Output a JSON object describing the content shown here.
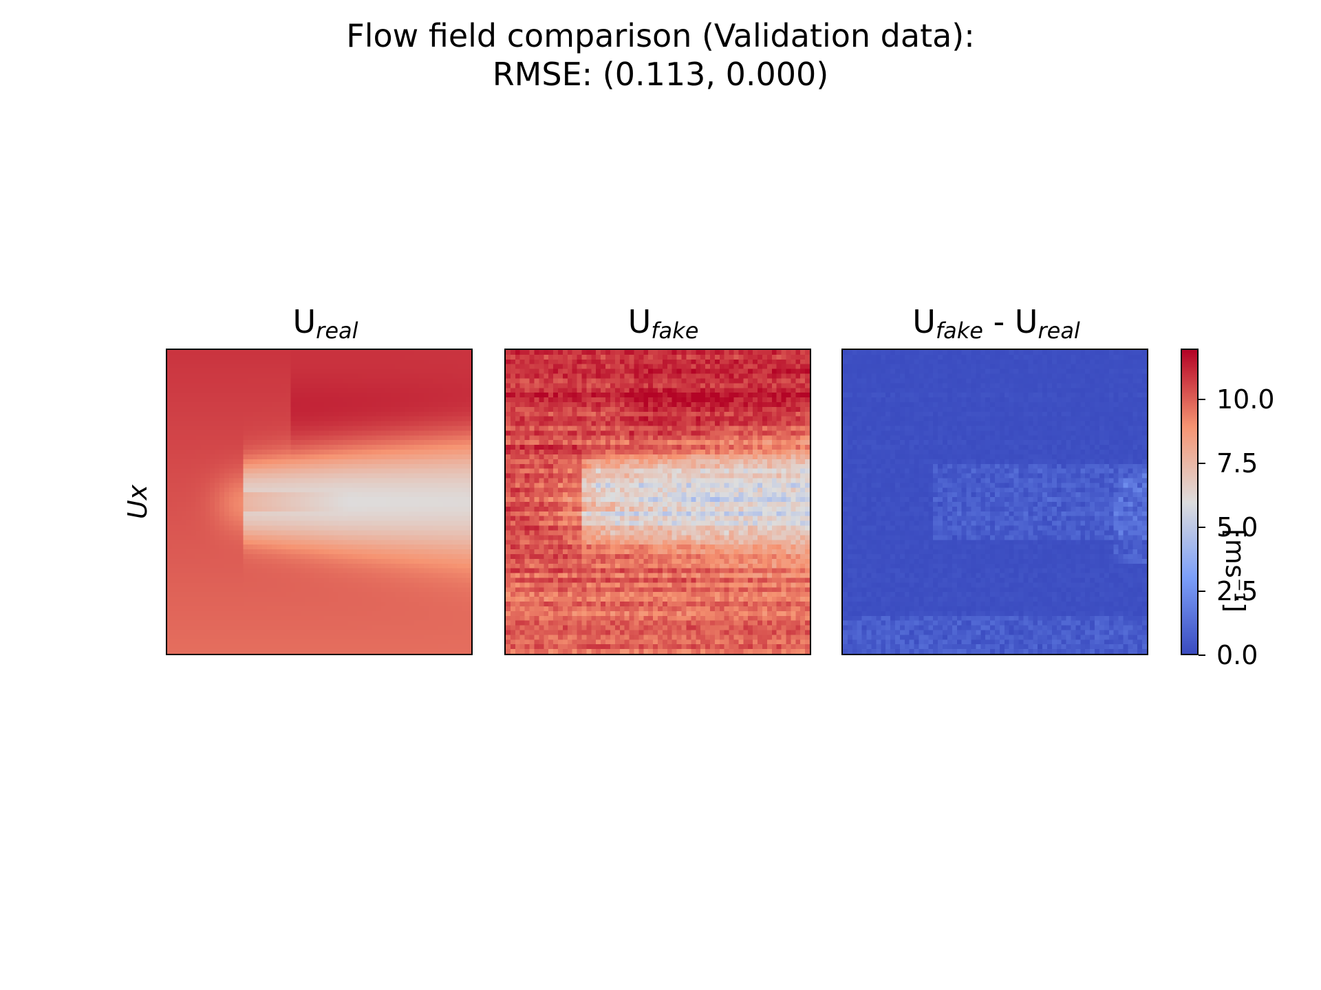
{
  "chart_data": {
    "type": "heatmap",
    "title_line1": "Flow field comparison (Validation data):",
    "title_line2": "RMSE: (0.113, 0.000)",
    "row_label": "Ux",
    "panels": [
      {
        "title_main": "U",
        "title_sub": "real"
      },
      {
        "title_main": "U",
        "title_sub": "fake"
      },
      {
        "title_main": "U",
        "title_sub": "fake",
        "title_mid": " - U",
        "title_sub2": "real"
      }
    ],
    "colorbar": {
      "colormap": "coolwarm",
      "range": [
        0,
        12
      ],
      "ticks": [
        0.0,
        2.5,
        5.0,
        7.5,
        10.0
      ],
      "tick_labels": [
        "0.0",
        "2.5",
        "5.0",
        "7.5",
        "10.0"
      ],
      "label": "[ms⁻¹]"
    },
    "field_model": {
      "freestream_top": 11.0,
      "freestream_bottom": 9.8,
      "wake_min": 5.8,
      "wake_center_row": 0.5,
      "wake_start_col": 0.25
    }
  }
}
